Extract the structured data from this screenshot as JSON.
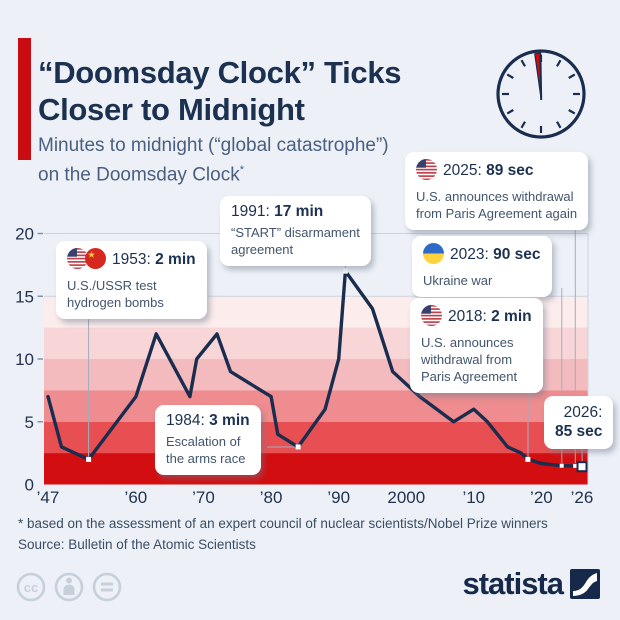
{
  "header": {
    "title": "“Doomsday Clock” Ticks Closer to Midnight",
    "subtitle_line1": "Minutes to midnight (“global catastrophe”)",
    "subtitle_line2": "on the Doomsday Clock",
    "footnote_marker": "*"
  },
  "chart_data": {
    "type": "line",
    "title": "Minutes to midnight on the Doomsday Clock, 1947-2026",
    "series_name": "Minutes to midnight",
    "x": [
      1947,
      1949,
      1953,
      1960,
      1963,
      1968,
      1969,
      1972,
      1974,
      1980,
      1981,
      1984,
      1988,
      1990,
      1991,
      1995,
      1998,
      2002,
      2007,
      2010,
      2012,
      2015,
      2017,
      2018,
      2020,
      2023,
      2025,
      2026
    ],
    "y": [
      7,
      3,
      2,
      7,
      12,
      7,
      10,
      12,
      9,
      7,
      4,
      3,
      6,
      10,
      17,
      14,
      9,
      7,
      5,
      6,
      5,
      3,
      2.5,
      2,
      1.67,
      1.5,
      1.48,
      1.42
    ],
    "xlim": [
      1947,
      2026
    ],
    "ylim": [
      0,
      20
    ],
    "grid": "horizontal",
    "xticks": [
      {
        "year": 1947,
        "label": "’47"
      },
      {
        "year": 1960,
        "label": "’60"
      },
      {
        "year": 1970,
        "label": "’70"
      },
      {
        "year": 1980,
        "label": "’80"
      },
      {
        "year": 1990,
        "label": "’90"
      },
      {
        "year": 2000,
        "label": "2000"
      },
      {
        "year": 2010,
        "label": "’10"
      },
      {
        "year": 2020,
        "label": "’20"
      },
      {
        "year": 2026,
        "label": "’26"
      }
    ],
    "yticks": [
      {
        "v": 20,
        "label": "20"
      },
      {
        "v": 15,
        "label": "15"
      },
      {
        "v": 10,
        "label": "10"
      },
      {
        "v": 5,
        "label": "5"
      },
      {
        "v": 0,
        "label": "0"
      }
    ],
    "gridline_values": [
      20,
      15
    ],
    "grid_color": "#c9d3de",
    "line_color": "#1b2d4e",
    "bands": [
      {
        "from": 12.5,
        "to": 15,
        "color": "#fcecec"
      },
      {
        "from": 10,
        "to": 12.5,
        "color": "#f8d6d8"
      },
      {
        "from": 7.5,
        "to": 10,
        "color": "#f3bbbe"
      },
      {
        "from": 5,
        "to": 7.5,
        "color": "#ee8c8f"
      },
      {
        "from": 2.5,
        "to": 5,
        "color": "#e84f52"
      },
      {
        "from": 0,
        "to": 2.5,
        "color": "#d30e10"
      }
    ],
    "markers": [
      {
        "year": 1953,
        "size": 5
      },
      {
        "year": 1984,
        "size": 5
      },
      {
        "year": 1991,
        "size": 5
      },
      {
        "year": 2018,
        "size": 5
      },
      {
        "year": 2023,
        "size": 4
      },
      {
        "year": 2025,
        "size": 4
      }
    ],
    "end_marker": {
      "year": 2026,
      "size": 9
    }
  },
  "annotations": [
    {
      "year": "1953:",
      "value": "2 min",
      "body": "U.S./USSR test\nhydrogen bombs",
      "flags": [
        "us",
        "ussr"
      ]
    },
    {
      "year": "1991:",
      "value": "17 min",
      "body": "“START” disarmament\nagreement",
      "flags": []
    },
    {
      "year": "2025:",
      "value": "89 sec",
      "body": "U.S. announces withdrawal\nfrom Paris Agreement again",
      "flags": [
        "us"
      ]
    },
    {
      "year": "2023:",
      "value": "90 sec",
      "body": "Ukraine war",
      "flags": [
        "ukraine"
      ]
    },
    {
      "year": "2018:",
      "value": "2 min",
      "body": "U.S. announces\nwithdrawal from\nParis Agreement",
      "flags": [
        "us"
      ]
    },
    {
      "year": "1984:",
      "value": "3 min",
      "body": "Escalation of\nthe arms race",
      "flags": []
    },
    {
      "year": "2026:",
      "value": "85 sec",
      "body": "",
      "flags": []
    }
  ],
  "footer": {
    "footnote": "* based on the assessment of an expert council of nuclear scientists/Nobel Prize winners",
    "source": "Source: Bulletin of the Atomic Scientists",
    "brand": "statista"
  },
  "colors": {
    "background": "#edf1f7",
    "accent_red": "#c90b12",
    "navy": "#1b2d4e"
  }
}
